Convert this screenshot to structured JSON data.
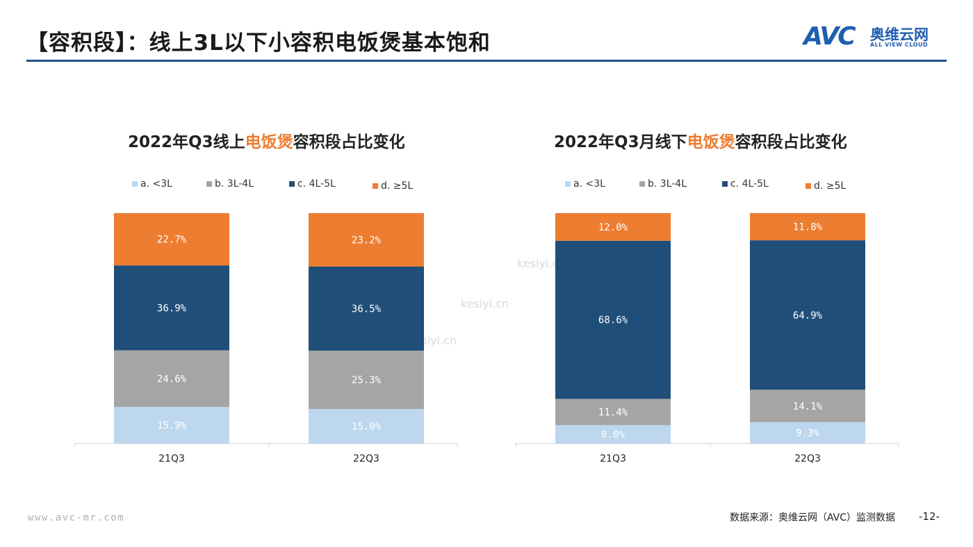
{
  "header": {
    "title": "【容积段】：线上3L以下小容积电饭煲基本饱和",
    "logo_mark": "AVC",
    "logo_cn": "奥维云网",
    "logo_en": "ALL VIEW CLOUD"
  },
  "colors": {
    "lt3": "#bdd7ee",
    "l3to4": "#a5a5a5",
    "l4to5": "#1f4e79",
    "ge5": "#ed7d31",
    "accent": "#1f4e8c"
  },
  "watermark": "kesiyi.cn",
  "chart_data": [
    {
      "type": "bar",
      "stacked": true,
      "title_prefix": "2022年Q3线上",
      "title_highlight": "电饭煲",
      "title_suffix": "容积段占比变化",
      "legend_position": "top",
      "categories": [
        "21Q3",
        "22Q3"
      ],
      "series": [
        {
          "name": "a. <3L",
          "color": "#bdd7ee",
          "label_color": "#ffffff",
          "values": [
            15.9,
            15.0
          ],
          "labels": [
            "15.9%",
            "15.0%"
          ]
        },
        {
          "name": "b. 3L-4L",
          "color": "#a5a5a5",
          "label_color": "#ffffff",
          "values": [
            24.6,
            25.3
          ],
          "labels": [
            "24.6%",
            "25.3%"
          ]
        },
        {
          "name": "c. 4L-5L",
          "color": "#1f4e79",
          "label_color": "#ffffff",
          "values": [
            36.9,
            36.5
          ],
          "labels": [
            "36.9%",
            "36.5%"
          ]
        },
        {
          "name": "d. ≥5L",
          "color": "#ed7d31",
          "label_color": "#ffffff",
          "values": [
            22.7,
            23.2
          ],
          "labels": [
            "22.7%",
            "23.2%"
          ]
        }
      ]
    },
    {
      "type": "bar",
      "stacked": true,
      "title_prefix": "2022年Q3月线下",
      "title_highlight": "电饭煲",
      "title_suffix": "容积段占比变化",
      "legend_position": "top",
      "categories": [
        "21Q3",
        "22Q3"
      ],
      "series": [
        {
          "name": "a. <3L",
          "color": "#bdd7ee",
          "label_color": "#ffffff",
          "values": [
            8.0,
            9.3
          ],
          "labels": [
            "8.0%",
            "9.3%"
          ]
        },
        {
          "name": "b. 3L-4L",
          "color": "#a5a5a5",
          "label_color": "#ffffff",
          "values": [
            11.4,
            14.1
          ],
          "labels": [
            "11.4%",
            "14.1%"
          ]
        },
        {
          "name": "c. 4L-5L",
          "color": "#1f4e79",
          "label_color": "#ffffff",
          "values": [
            68.6,
            64.9
          ],
          "labels": [
            "68.6%",
            "64.9%"
          ]
        },
        {
          "name": "d. ≥5L",
          "color": "#ed7d31",
          "label_color": "#ffffff",
          "values": [
            12.0,
            11.8
          ],
          "labels": [
            "12.0%",
            "11.8%"
          ]
        }
      ]
    }
  ],
  "footer": {
    "url": "www.avc-mr.com",
    "source": "数据来源：奥维云网（AVC）监测数据",
    "page": "-12-"
  }
}
